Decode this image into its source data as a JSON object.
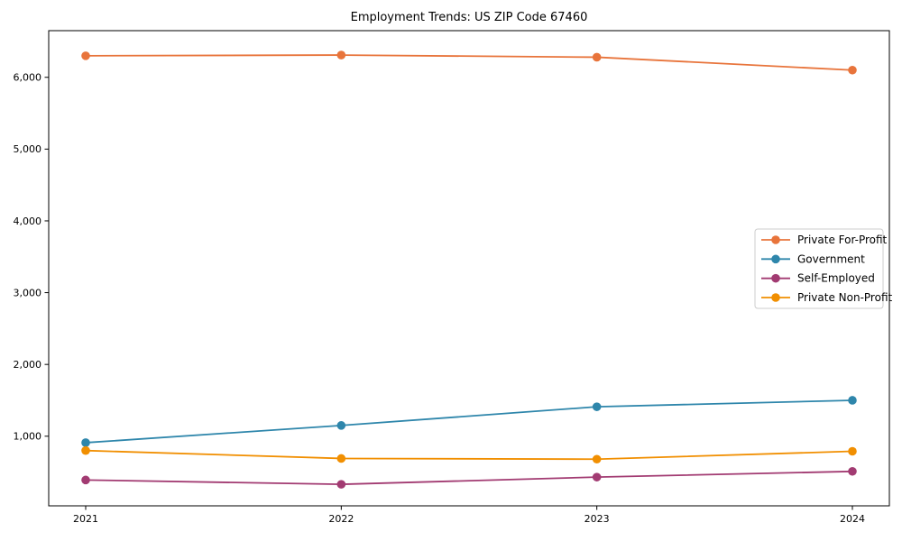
{
  "page": {
    "background": "#ffffff"
  },
  "chart_data": {
    "type": "line",
    "title": "Employment Trends: US ZIP Code 67460",
    "x_labels": [
      "2021",
      "2022",
      "2023",
      "2024"
    ],
    "series": [
      {
        "name": "Private For-Profit",
        "color": "#E8743B",
        "values": [
          6300,
          6310,
          6280,
          6100
        ]
      },
      {
        "name": "Government",
        "color": "#2E86AB",
        "values": [
          910,
          1150,
          1410,
          1500
        ]
      },
      {
        "name": "Self-Employed",
        "color": "#A23B72",
        "values": [
          390,
          330,
          430,
          510
        ]
      },
      {
        "name": "Private Non-Profit",
        "color": "#F18F01",
        "values": [
          800,
          690,
          680,
          790
        ]
      }
    ],
    "xlabel": "",
    "ylabel": "",
    "ylim": [
      30,
      6650
    ],
    "yticks": [
      1000,
      2000,
      3000,
      4000,
      5000,
      6000
    ],
    "ytick_labels": [
      "1,000",
      "2,000",
      "3,000",
      "4,000",
      "5,000",
      "6,000"
    ],
    "grid": false,
    "marker": "circle",
    "line_width": 1.8,
    "marker_radius": 4.8,
    "axis_color": "#000000",
    "legend": {
      "position": "center-right",
      "frame_color": "#cccccc",
      "background": "#ffffff",
      "entries": [
        "Private For-Profit",
        "Government",
        "Self-Employed",
        "Private Non-Profit"
      ]
    }
  }
}
